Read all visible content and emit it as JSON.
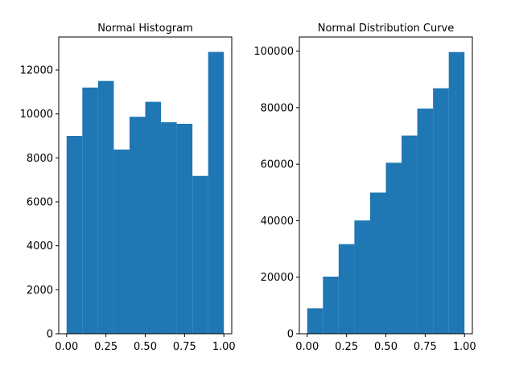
{
  "chart_data": [
    {
      "type": "bar",
      "subtype": "histogram",
      "title": "Normal Histogram",
      "xlabel": "",
      "ylabel": "",
      "bin_edges": [
        0.0,
        0.1,
        0.2,
        0.3,
        0.4,
        0.5,
        0.6,
        0.7,
        0.8,
        0.9,
        1.0
      ],
      "values": [
        9000,
        11200,
        11500,
        8380,
        9870,
        10550,
        9620,
        9550,
        7180,
        12820
      ],
      "xlim": [
        -0.05,
        1.05
      ],
      "ylim": [
        0,
        13500
      ],
      "xticks": [
        0.0,
        0.25,
        0.5,
        0.75,
        1.0
      ],
      "xtick_labels": [
        "0.00",
        "0.25",
        "0.50",
        "0.75",
        "1.00"
      ],
      "yticks": [
        0,
        2000,
        4000,
        6000,
        8000,
        10000,
        12000
      ],
      "ytick_labels": [
        "0",
        "2000",
        "4000",
        "6000",
        "8000",
        "10000",
        "12000"
      ],
      "grid": false,
      "color": "#1f77b4"
    },
    {
      "type": "bar",
      "subtype": "cumulative histogram",
      "title": "Normal Distribution Curve",
      "xlabel": "",
      "ylabel": "",
      "bin_edges": [
        0.0,
        0.1,
        0.2,
        0.3,
        0.4,
        0.5,
        0.6,
        0.7,
        0.8,
        0.9,
        1.0
      ],
      "values": [
        9000,
        20200,
        31700,
        40080,
        49950,
        60500,
        70120,
        79670,
        86850,
        99670
      ],
      "xlim": [
        -0.05,
        1.05
      ],
      "ylim": [
        0,
        105000
      ],
      "xticks": [
        0.0,
        0.25,
        0.5,
        0.75,
        1.0
      ],
      "xtick_labels": [
        "0.00",
        "0.25",
        "0.50",
        "0.75",
        "1.00"
      ],
      "yticks": [
        0,
        20000,
        40000,
        60000,
        80000,
        100000
      ],
      "ytick_labels": [
        "0",
        "20000",
        "40000",
        "60000",
        "80000",
        "100000"
      ],
      "grid": false,
      "color": "#1f77b4"
    }
  ]
}
